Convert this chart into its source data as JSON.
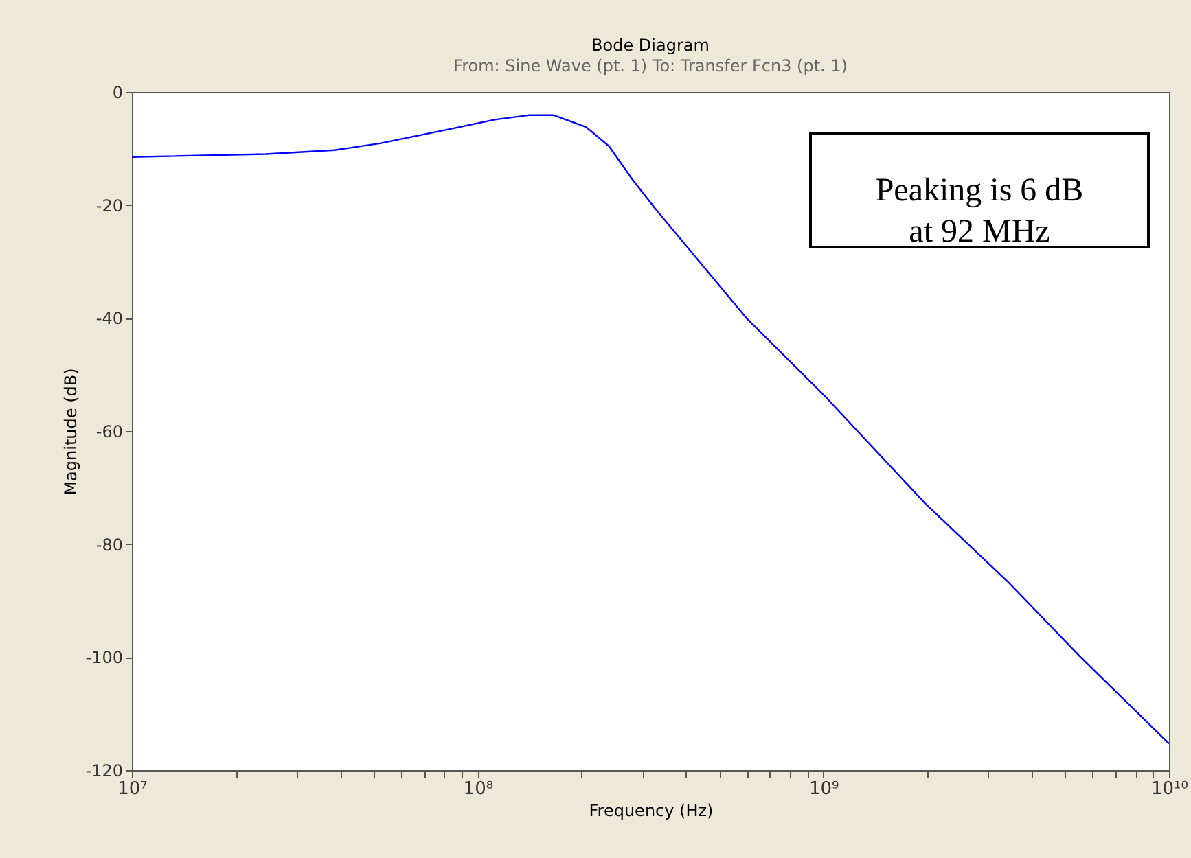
{
  "chart_data": {
    "type": "line",
    "title": "Bode Diagram",
    "subtitle": "From: Sine Wave (pt. 1)  To: Transfer Fcn3 (pt. 1)",
    "xlabel": "Frequency  (Hz)",
    "ylabel": "Magnitude (dB)",
    "x": [
      10000000,
      24400000,
      38500000,
      52200000,
      82600000,
      112000000,
      141000000,
      166000000,
      206000000,
      240000000,
      279000000,
      326000000,
      599000000,
      1010000000,
      1970000000,
      3410000000,
      5550000000,
      10000000000
    ],
    "series": [
      {
        "color": "#0000ff",
        "values": [
          -11.5,
          -11.0,
          -10.3,
          -9.1,
          -6.6,
          -4.9,
          -4.1,
          -4.1,
          -6.2,
          -9.6,
          -15.3,
          -20.6,
          -40.0,
          -53.8,
          -72.8,
          -86.6,
          -100.0,
          -115.3
        ]
      }
    ],
    "log": "x",
    "xlim": [
      10000000,
      10000000000
    ],
    "ylim": [
      -120,
      0
    ],
    "xticks": [
      {
        "value": 10000000,
        "label": "10⁷"
      },
      {
        "value": 20000000,
        "label": null
      },
      {
        "value": 30000000,
        "label": null
      },
      {
        "value": 40000000,
        "label": null
      },
      {
        "value": 50000000,
        "label": null
      },
      {
        "value": 60000000,
        "label": null
      },
      {
        "value": 70000000,
        "label": null
      },
      {
        "value": 80000000,
        "label": null
      },
      {
        "value": 90000000,
        "label": null
      },
      {
        "value": 100000000,
        "label": "10⁸"
      },
      {
        "value": 200000000,
        "label": null
      },
      {
        "value": 300000000,
        "label": null
      },
      {
        "value": 400000000,
        "label": null
      },
      {
        "value": 500000000,
        "label": null
      },
      {
        "value": 600000000,
        "label": null
      },
      {
        "value": 700000000,
        "label": null
      },
      {
        "value": 800000000,
        "label": null
      },
      {
        "value": 900000000,
        "label": null
      },
      {
        "value": 1000000000,
        "label": "10⁹"
      },
      {
        "value": 2000000000,
        "label": null
      },
      {
        "value": 3000000000,
        "label": null
      },
      {
        "value": 4000000000,
        "label": null
      },
      {
        "value": 5000000000,
        "label": null
      },
      {
        "value": 6000000000,
        "label": null
      },
      {
        "value": 7000000000,
        "label": null
      },
      {
        "value": 8000000000,
        "label": null
      },
      {
        "value": 9000000000,
        "label": null
      },
      {
        "value": 10000000000,
        "label": "10¹⁰"
      }
    ],
    "yticks": [
      -120,
      -100,
      -80,
      -60,
      -40,
      -20,
      0
    ],
    "grid": false,
    "line_style": "solid",
    "marker": "none",
    "annotations": [
      "Peaking is 6 dB\nat 92 MHz"
    ]
  }
}
